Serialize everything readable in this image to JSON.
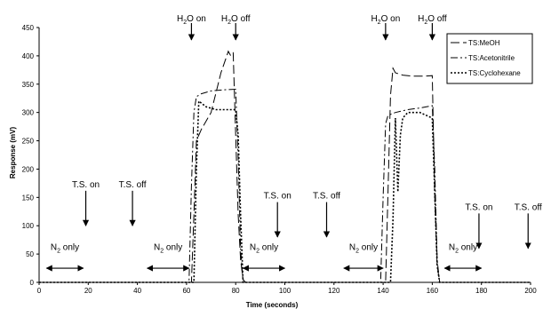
{
  "chart_data": {
    "type": "line",
    "title": "",
    "xlabel": "Time (seconds)",
    "ylabel": "Response (mV)",
    "xlim": [
      0,
      200
    ],
    "ylim": [
      0,
      450
    ],
    "x_ticks": [
      0,
      20,
      40,
      60,
      80,
      100,
      120,
      140,
      160,
      180,
      200
    ],
    "y_ticks": [
      0,
      50,
      100,
      150,
      200,
      250,
      300,
      350,
      400,
      450
    ],
    "grid": false,
    "legend_position": "top-right",
    "series": [
      {
        "name": "TS:MeOH",
        "dash": "10,4",
        "x": [
          0,
          62,
          63,
          64,
          66,
          70,
          74,
          76,
          77,
          78,
          79,
          80,
          81,
          82,
          83,
          84,
          100,
          141,
          142,
          143,
          144,
          145,
          148,
          152,
          156,
          160,
          161,
          162,
          163,
          200
        ],
        "y": [
          0,
          0,
          120,
          250,
          270,
          300,
          370,
          395,
          408,
          400,
          405,
          260,
          120,
          40,
          5,
          0,
          0,
          0,
          160,
          330,
          378,
          370,
          366,
          364,
          364,
          365,
          150,
          30,
          0,
          0
        ]
      },
      {
        "name": "TS:Acetonitrile",
        "dash": "8,3,2,3",
        "x": [
          0,
          61,
          62,
          63,
          64,
          66,
          70,
          75,
          80,
          81,
          82,
          83,
          100,
          139,
          140,
          141,
          142,
          145,
          150,
          155,
          160,
          161,
          162,
          163,
          200
        ],
        "y": [
          0,
          0,
          170,
          300,
          328,
          333,
          338,
          340,
          341,
          220,
          60,
          0,
          0,
          0,
          150,
          280,
          295,
          300,
          305,
          308,
          312,
          200,
          40,
          0,
          0
        ]
      },
      {
        "name": "TS:Cyclohexane",
        "dash": "2,2",
        "x": [
          0,
          63,
          64,
          65,
          68,
          72,
          76,
          80,
          81,
          82,
          83,
          100,
          143,
          144,
          145,
          146,
          147,
          148,
          150,
          155,
          160,
          161,
          162,
          163,
          200
        ],
        "y": [
          0,
          0,
          200,
          320,
          310,
          305,
          305,
          305,
          260,
          120,
          0,
          0,
          0,
          110,
          290,
          160,
          260,
          290,
          300,
          300,
          290,
          160,
          30,
          0,
          0
        ]
      }
    ],
    "annotations": {
      "h2o_on_label": "H",
      "h2o_off_label": "H",
      "water_sub": "2",
      "on_suffix": "O on",
      "off_suffix": "O off",
      "ts_on_label": "T.S. on",
      "ts_off_label": "T.S. off",
      "n2_main": "N",
      "n2_sub": "2",
      "n2_suffix": " only",
      "h2o_on_x": [
        62,
        141
      ],
      "h2o_off_x": [
        80,
        160
      ],
      "ts_on_events": [
        {
          "x": 19,
          "y": 100
        },
        {
          "x": 97,
          "y": 80
        },
        {
          "x": 179,
          "y": 60
        }
      ],
      "ts_off_events": [
        {
          "x": 38,
          "y": 100
        },
        {
          "x": 117,
          "y": 80
        },
        {
          "x": 199,
          "y": 60
        }
      ],
      "n2_spans": [
        [
          3,
          18
        ],
        [
          44,
          61
        ],
        [
          83,
          100
        ],
        [
          124,
          140
        ],
        [
          165,
          180
        ]
      ]
    }
  }
}
